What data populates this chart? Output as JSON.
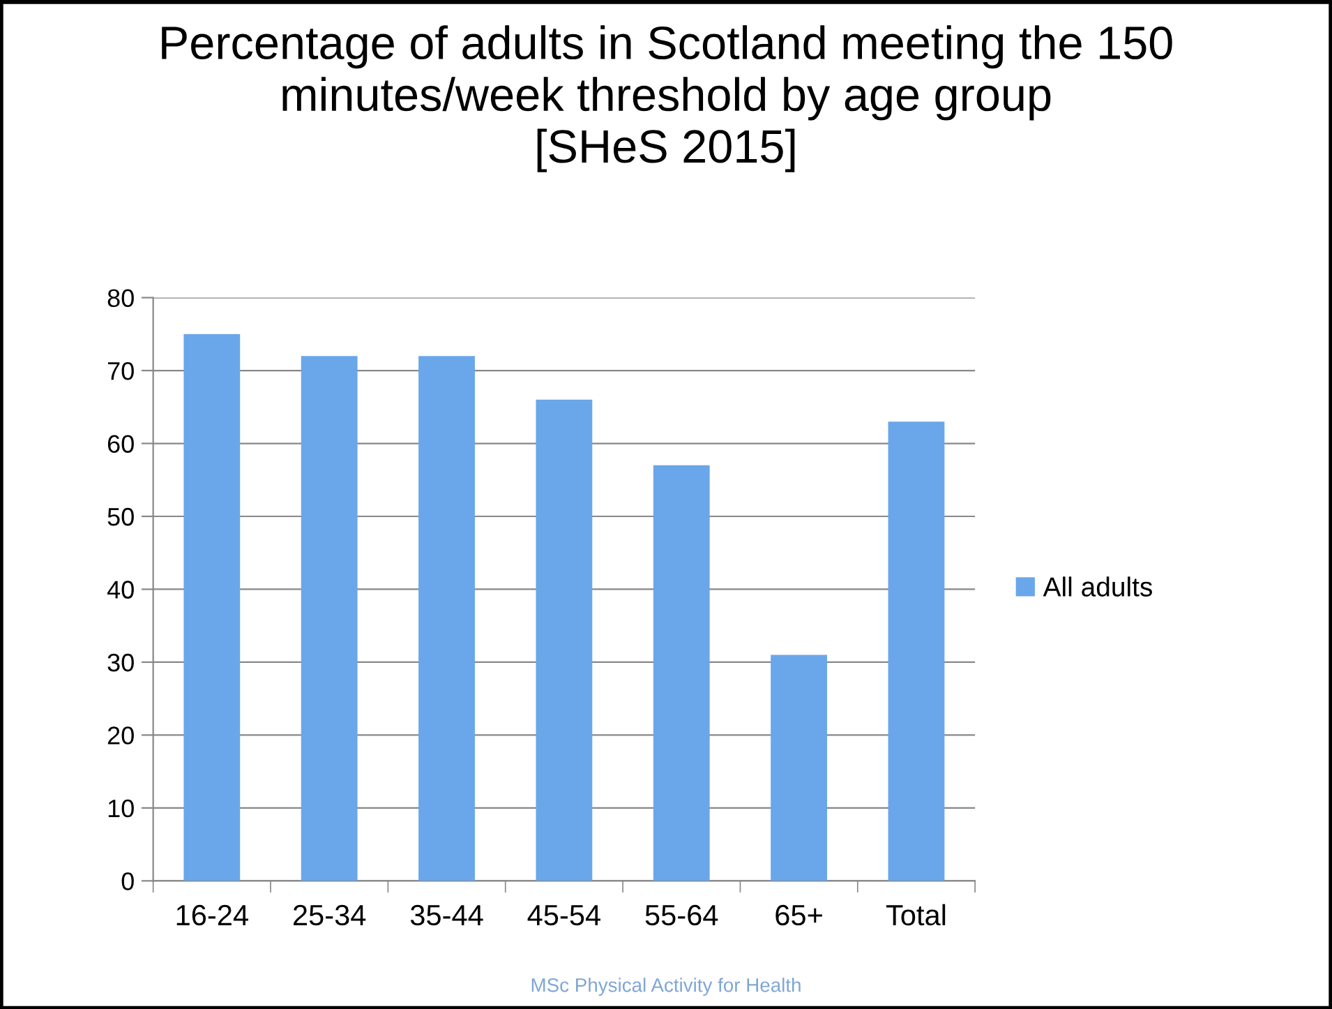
{
  "chart_data": {
    "type": "bar",
    "title": "Percentage of adults in Scotland meeting the 150\nminutes/week threshold by age group\n[SHeS 2015]",
    "categories": [
      "16-24",
      "25-34",
      "35-44",
      "45-54",
      "55-64",
      "65+",
      "Total"
    ],
    "series": [
      {
        "name": "All adults",
        "color": "#6aa6ea",
        "values": [
          75,
          72,
          72,
          66,
          57,
          31,
          63
        ]
      }
    ],
    "ylim": [
      0,
      80
    ],
    "yticks": [
      0,
      10,
      20,
      30,
      40,
      50,
      60,
      70,
      80
    ],
    "grid": "y",
    "legend": "right",
    "annotations": [
      "MSc Physical Activity for Health"
    ]
  }
}
